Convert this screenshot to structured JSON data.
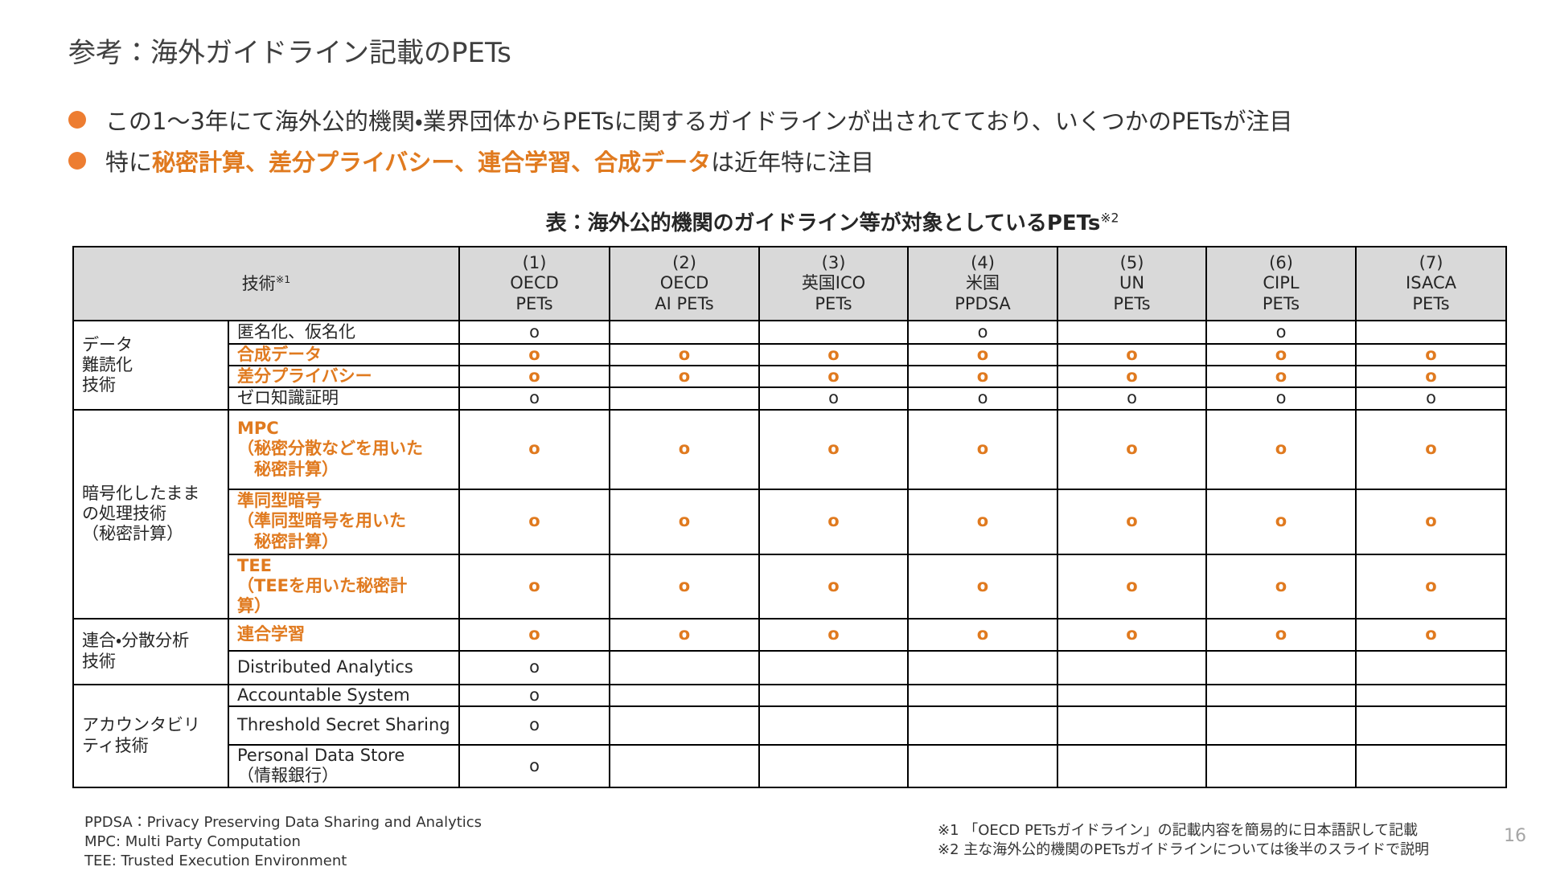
{
  "title": "参考：海外ガイドライン記載のPETs",
  "bullets": [
    [
      {
        "text": "この1〜3年にて海外公的機関・業界団体からPETsに関するガイドラインが出されてており、いくつかのPETsが注目",
        "highlight": false
      }
    ],
    [
      {
        "text": "特に",
        "highlight": false
      },
      {
        "text": "秘密計算、差分プライバシー、連合学習、合成データ",
        "highlight": true
      },
      {
        "text": "は近年特に注目",
        "highlight": false
      }
    ]
  ],
  "table": {
    "caption": "表：海外公的機関のガイドライン等が対象としているPETs",
    "caption_note": "※2",
    "tech_header": "技術",
    "tech_header_note": "※1",
    "columns": [
      [
        "(1)",
        "OECD",
        "PETs"
      ],
      [
        "(2)",
        "OECD",
        "AI PETs"
      ],
      [
        "(3)",
        "英国ICO",
        "PETs"
      ],
      [
        "(4)",
        "米国",
        "PPDSA"
      ],
      [
        "(5)",
        "UN",
        "PETs"
      ],
      [
        "(6)",
        "CIPL",
        "PETs"
      ],
      [
        "(7)",
        "ISACA",
        "PETs"
      ]
    ],
    "groups": [
      {
        "label": [
          "データ",
          "難読化",
          "技術"
        ],
        "rows": [
          {
            "tech": [
              "匿名化、仮名化"
            ],
            "highlight": false,
            "marks": [
              "o",
              null,
              null,
              "o",
              null,
              "o",
              null
            ]
          },
          {
            "tech": [
              "合成データ"
            ],
            "highlight": true,
            "marks": [
              "o",
              "o",
              "o",
              "o",
              "o",
              "o",
              "o"
            ]
          },
          {
            "tech": [
              "差分プライバシー"
            ],
            "highlight": true,
            "marks": [
              "o",
              "o",
              "o",
              "o",
              "o",
              "o",
              "o"
            ]
          },
          {
            "tech": [
              "ゼロ知識証明"
            ],
            "highlight": false,
            "marks": [
              "o",
              null,
              "o",
              "o",
              "o",
              "o",
              "o"
            ]
          }
        ]
      },
      {
        "label": [
          "暗号化したまま",
          "の処理技術",
          "（秘密計算）"
        ],
        "rows": [
          {
            "tech": [
              "MPC",
              "（秘密分散などを用いた",
              "　秘密計算）"
            ],
            "highlight": true,
            "marks": [
              "o",
              "o",
              "o",
              "o",
              "o",
              "o",
              "o"
            ]
          },
          {
            "tech": [
              "準同型暗号",
              "（準同型暗号を用いた",
              "　秘密計算）"
            ],
            "highlight": true,
            "marks": [
              "o",
              "o",
              "o",
              "o",
              "o",
              "o",
              "o"
            ]
          },
          {
            "tech": [
              "TEE",
              "（TEEを用いた秘密計",
              "算）"
            ],
            "highlight": true,
            "marks": [
              "o",
              "o",
              "o",
              "o",
              "o",
              "o",
              "o"
            ]
          }
        ]
      },
      {
        "label": [
          "連合・分散分析",
          "技術"
        ],
        "rows": [
          {
            "tech": [
              "連合学習"
            ],
            "highlight": true,
            "marks": [
              "o",
              "o",
              "o",
              "o",
              "o",
              "o",
              "o"
            ]
          },
          {
            "tech": [
              "Distributed Analytics"
            ],
            "highlight": false,
            "marks": [
              "o",
              null,
              null,
              null,
              null,
              null,
              null
            ]
          }
        ]
      },
      {
        "label": [
          "アカウンタビリ",
          "ティ技術"
        ],
        "rows": [
          {
            "tech": [
              "Accountable System"
            ],
            "highlight": false,
            "marks": [
              "o",
              null,
              null,
              null,
              null,
              null,
              null
            ]
          },
          {
            "tech": [
              "Threshold Secret Sharing"
            ],
            "highlight": false,
            "marks": [
              "o",
              null,
              null,
              null,
              null,
              null,
              null
            ]
          },
          {
            "tech": [
              "Personal Data Store",
              "（情報銀行）"
            ],
            "highlight": false,
            "marks": [
              "o",
              null,
              null,
              null,
              null,
              null,
              null
            ]
          }
        ]
      }
    ]
  },
  "footnotes_left": [
    "PPDSA：Privacy Preserving Data Sharing and Analytics",
    "MPC: Multi Party Computation",
    "TEE: Trusted Execution Environment"
  ],
  "footnotes_right": [
    "※1 「OECD PETsガイドライン」の記載内容を簡易的に日本語訳して記載",
    "※2 主な海外公的機関のPETsガイドラインについては後半のスライドで説明"
  ],
  "page_number": "16"
}
